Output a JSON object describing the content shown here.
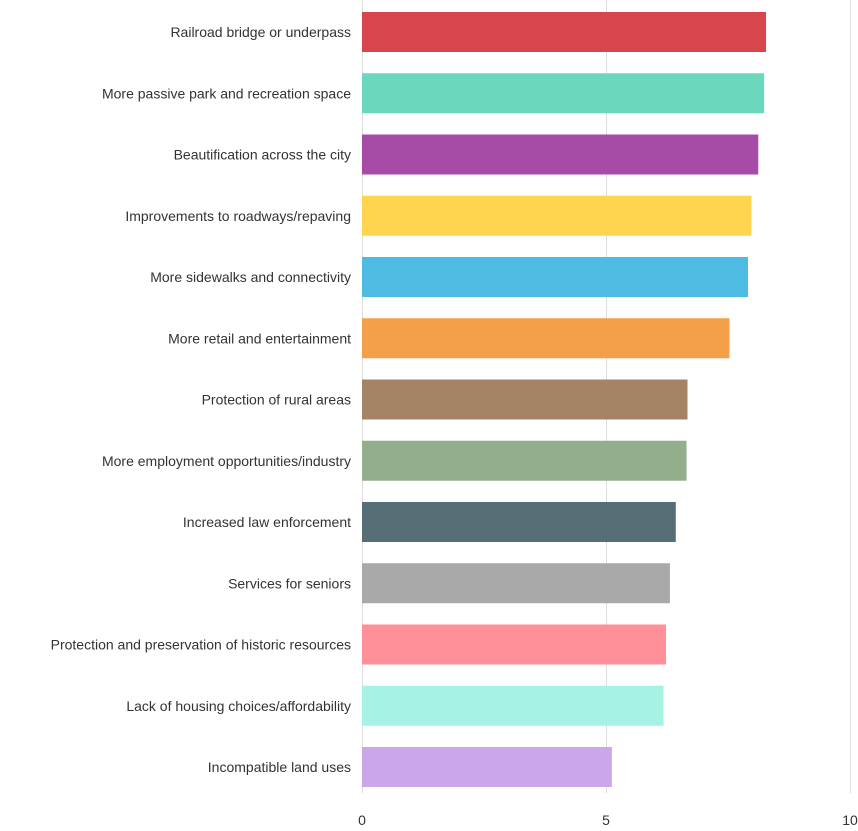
{
  "chart_data": {
    "type": "bar",
    "orientation": "horizontal",
    "title": "",
    "xlabel": "",
    "ylabel": "",
    "xlim": [
      0,
      10
    ],
    "x_ticks": [
      0,
      5,
      10
    ],
    "grid": true,
    "legend": "none",
    "categories": [
      "Railroad bridge or underpass",
      "More passive park and recreation space",
      "Beautification across the city",
      "Improvements to roadways/repaving",
      "More sidewalks and connectivity",
      "More retail and entertainment",
      "Protection of rural areas",
      "More employment opportunities/industry",
      "Increased law enforcement",
      "Services for seniors",
      "Protection and preservation of historic resources",
      "Lack of housing choices/affordability",
      "Incompatible land uses"
    ],
    "values": [
      8.28,
      8.24,
      8.12,
      7.98,
      7.91,
      7.53,
      6.67,
      6.65,
      6.43,
      6.31,
      6.23,
      6.18,
      5.12
    ],
    "colors": [
      "#d7464d",
      "#6bd7bd",
      "#a64ba6",
      "#ffd54f",
      "#4ebbe2",
      "#f4a04a",
      "#a58466",
      "#92ae8a",
      "#566f77",
      "#a9a9a9",
      "#ff8f98",
      "#a6f2e4",
      "#cba6e8"
    ]
  }
}
